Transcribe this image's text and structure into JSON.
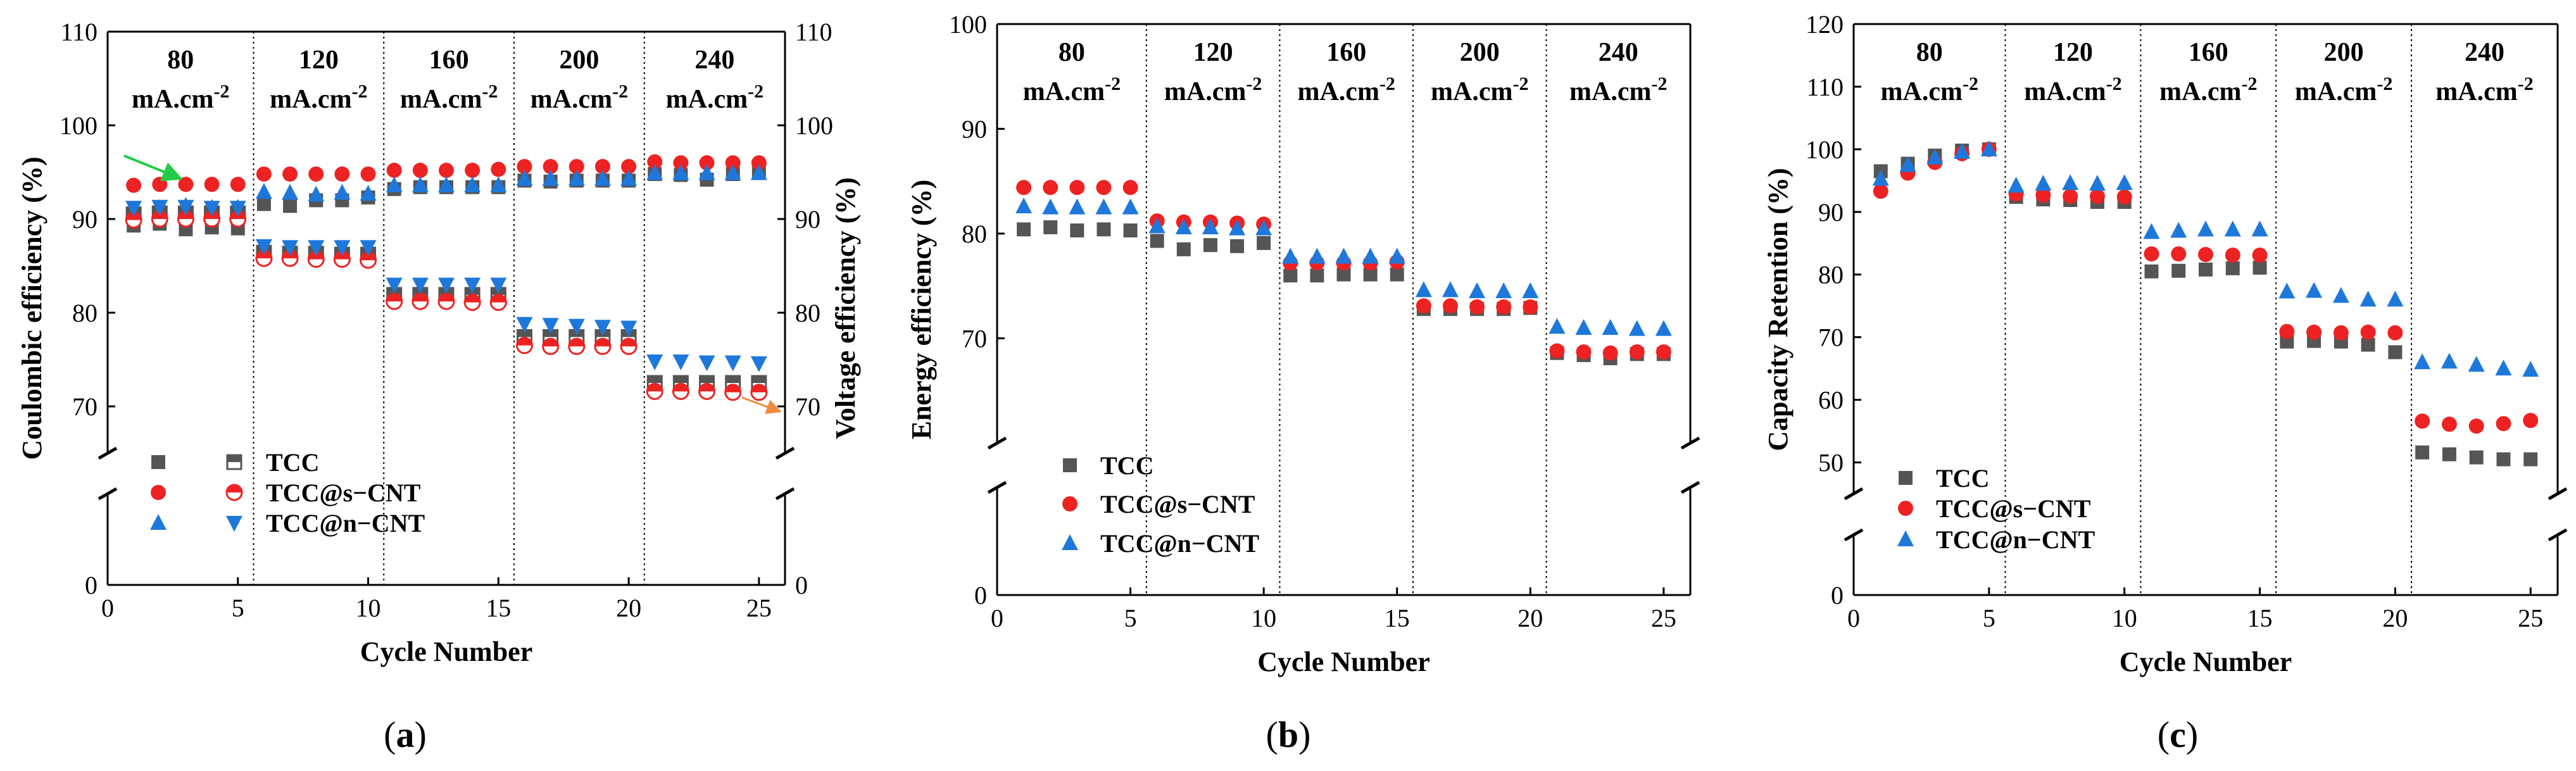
{
  "figure": {
    "panels": [
      {
        "id": "a",
        "label_open": "(",
        "label_letter": "a",
        "label_close": ")",
        "xlabel": "Cycle Number",
        "ylabel": "Coulombic efficiency (%)",
        "ylabel_right": "Voltage efficiency (%)",
        "xticks": [
          0,
          5,
          10,
          15,
          20,
          25
        ],
        "yticks": [
          0,
          70,
          80,
          90,
          100,
          110
        ],
        "yticks_right": [
          0,
          70,
          80,
          90,
          100,
          110
        ],
        "legend": [
          "TCC",
          "TCC@s−CNT",
          "TCC@n−CNT"
        ]
      },
      {
        "id": "b",
        "label_open": "(",
        "label_letter": "b",
        "label_close": ")",
        "xlabel": "Cycle Number",
        "ylabel": "Energy efficiency (%)",
        "xticks": [
          0,
          5,
          10,
          15,
          20,
          25
        ],
        "yticks": [
          0,
          70,
          80,
          90,
          100
        ],
        "legend": [
          "TCC",
          "TCC@s−CNT",
          "TCC@n−CNT"
        ]
      },
      {
        "id": "c",
        "label_open": "(",
        "label_letter": "c",
        "label_close": ")",
        "xlabel": "Cycle Number",
        "ylabel": "Capacity Retention (%)",
        "xticks": [
          0,
          5,
          10,
          15,
          20,
          25
        ],
        "yticks": [
          0,
          50,
          60,
          70,
          80,
          90,
          100,
          110,
          120
        ],
        "legend": [
          "TCC",
          "TCC@s−CNT",
          "TCC@n−CNT"
        ]
      }
    ],
    "rate_labels": [
      "80",
      "120",
      "160",
      "200",
      "240"
    ],
    "rate_unit": "mA.cm",
    "rate_unit_sup": "-2"
  },
  "chart_data": [
    {
      "type": "scatter",
      "title": "(a)",
      "xlabel": "Cycle Number",
      "ylabel": "Coulombic efficiency (%)",
      "ylabel_right": "Voltage efficiency (%)",
      "xlim": [
        0,
        26
      ],
      "ylim_display": [
        0,
        110
      ],
      "axis_break": [
        0,
        65
      ],
      "segment_labels": [
        "80 mA.cm-2",
        "120 mA.cm-2",
        "160 mA.cm-2",
        "200 mA.cm-2",
        "240 mA.cm-2"
      ],
      "segment_boundaries": [
        5.6,
        10.6,
        15.6,
        20.6
      ],
      "x": [
        1,
        2,
        3,
        4,
        5,
        6,
        7,
        8,
        9,
        10,
        11,
        12,
        13,
        14,
        15,
        16,
        17,
        18,
        19,
        20,
        21,
        22,
        23,
        24,
        25
      ],
      "series": [
        {
          "name": "TCC",
          "metric": "Coulombic efficiency",
          "marker": "square",
          "color": "#555555",
          "values": [
            89.3,
            89.5,
            88.9,
            89.1,
            89.0,
            91.6,
            91.4,
            92.0,
            92.0,
            92.3,
            93.2,
            93.4,
            93.4,
            93.4,
            93.4,
            94.1,
            94.0,
            94.1,
            94.1,
            94.1,
            94.8,
            94.7,
            94.2,
            94.8,
            94.9
          ]
        },
        {
          "name": "TCC@s−CNT",
          "metric": "Coulombic efficiency",
          "marker": "circle",
          "color": "#ee2222",
          "values": [
            93.6,
            93.7,
            93.7,
            93.7,
            93.7,
            94.8,
            94.8,
            94.8,
            94.8,
            94.8,
            95.2,
            95.2,
            95.2,
            95.2,
            95.3,
            95.6,
            95.6,
            95.6,
            95.6,
            95.6,
            96.1,
            96.0,
            96.0,
            96.0,
            96.0
          ]
        },
        {
          "name": "TCC@n−CNT",
          "metric": "Coulombic efficiency",
          "marker": "triangle-up",
          "color": "#1e78dc",
          "values": [
            90.9,
            91.2,
            91.4,
            91.2,
            91.2,
            92.9,
            92.8,
            92.6,
            92.8,
            92.7,
            93.6,
            93.6,
            93.6,
            93.6,
            93.6,
            94.3,
            94.3,
            94.3,
            94.3,
            94.3,
            94.9,
            94.9,
            94.9,
            94.9,
            94.9
          ]
        },
        {
          "name": "TCC",
          "metric": "Voltage efficiency",
          "marker": "square-half",
          "color": "#555555",
          "values": [
            90.5,
            90.6,
            90.6,
            90.6,
            90.6,
            86.4,
            86.3,
            86.3,
            86.2,
            86.2,
            81.9,
            81.9,
            81.9,
            81.9,
            81.9,
            77.4,
            77.4,
            77.4,
            77.4,
            77.4,
            72.5,
            72.5,
            72.5,
            72.5,
            72.5
          ]
        },
        {
          "name": "TCC@s−CNT",
          "metric": "Voltage efficiency",
          "marker": "circle-half",
          "color": "#ee2222",
          "values": [
            89.9,
            90.0,
            90.0,
            90.0,
            90.0,
            85.8,
            85.8,
            85.7,
            85.7,
            85.6,
            81.2,
            81.2,
            81.2,
            81.1,
            81.1,
            76.5,
            76.4,
            76.4,
            76.4,
            76.4,
            71.6,
            71.6,
            71.6,
            71.5,
            71.5
          ]
        },
        {
          "name": "TCC@n−CNT",
          "metric": "Voltage efficiency",
          "marker": "triangle-down",
          "color": "#1e78dc",
          "values": [
            91.2,
            91.3,
            91.3,
            91.2,
            91.2,
            87.1,
            87.0,
            87.0,
            87.0,
            87.0,
            83.0,
            83.0,
            83.0,
            83.0,
            83.0,
            78.8,
            78.7,
            78.6,
            78.5,
            78.4,
            74.8,
            74.8,
            74.7,
            74.7,
            74.6
          ]
        }
      ]
    },
    {
      "type": "scatter",
      "title": "(b)",
      "xlabel": "Cycle Number",
      "ylabel": "Energy efficiency (%)",
      "xlim": [
        0,
        26
      ],
      "ylim_display": [
        0,
        100
      ],
      "axis_break": [
        0,
        60
      ],
      "segment_labels": [
        "80 mA.cm-2",
        "120 mA.cm-2",
        "160 mA.cm-2",
        "200 mA.cm-2",
        "240 mA.cm-2"
      ],
      "segment_boundaries": [
        5.6,
        10.6,
        15.6,
        20.6
      ],
      "x": [
        1,
        2,
        3,
        4,
        5,
        6,
        7,
        8,
        9,
        10,
        11,
        12,
        13,
        14,
        15,
        16,
        17,
        18,
        19,
        20,
        21,
        22,
        23,
        24,
        25
      ],
      "series": [
        {
          "name": "TCC",
          "marker": "square",
          "color": "#555555",
          "values": [
            80.4,
            80.6,
            80.3,
            80.4,
            80.3,
            79.3,
            78.5,
            78.9,
            78.8,
            79.1,
            76.0,
            76.0,
            76.1,
            76.1,
            76.1,
            72.8,
            72.8,
            72.8,
            72.8,
            72.9,
            68.6,
            68.4,
            68.1,
            68.5,
            68.5
          ]
        },
        {
          "name": "TCC@s−CNT",
          "marker": "circle",
          "color": "#ee2222",
          "values": [
            84.4,
            84.4,
            84.4,
            84.4,
            84.4,
            81.2,
            81.1,
            81.1,
            81.0,
            80.9,
            77.2,
            77.2,
            77.2,
            77.2,
            77.3,
            73.1,
            73.1,
            73.0,
            73.0,
            73.0,
            68.8,
            68.7,
            68.6,
            68.7,
            68.7
          ]
        },
        {
          "name": "TCC@n−CNT",
          "marker": "triangle-up",
          "color": "#1e78dc",
          "values": [
            82.6,
            82.5,
            82.5,
            82.5,
            82.5,
            80.7,
            80.6,
            80.6,
            80.5,
            80.5,
            77.8,
            77.8,
            77.8,
            77.8,
            77.8,
            74.6,
            74.6,
            74.5,
            74.5,
            74.5,
            71.1,
            71.0,
            71.0,
            70.9,
            70.9
          ]
        }
      ]
    },
    {
      "type": "scatter",
      "title": "(c)",
      "xlabel": "Cycle Number",
      "ylabel": "Capacity Retention (%)",
      "xlim": [
        0,
        26
      ],
      "ylim_display": [
        0,
        120
      ],
      "axis_break": [
        0,
        45
      ],
      "segment_labels": [
        "80 mA.cm-2",
        "120 mA.cm-2",
        "160 mA.cm-2",
        "200 mA.cm-2",
        "240 mA.cm-2"
      ],
      "segment_boundaries": [
        5.6,
        10.6,
        15.6,
        20.6
      ],
      "x": [
        1,
        2,
        3,
        4,
        5,
        6,
        7,
        8,
        9,
        10,
        11,
        12,
        13,
        14,
        15,
        16,
        17,
        18,
        19,
        20,
        21,
        22,
        23,
        24,
        25
      ],
      "series": [
        {
          "name": "TCC",
          "marker": "square",
          "color": "#555555",
          "values": [
            96.5,
            97.7,
            99.0,
            99.8,
            100.0,
            92.4,
            92.0,
            91.9,
            91.6,
            91.6,
            80.5,
            80.6,
            80.8,
            81.0,
            81.1,
            69.3,
            69.4,
            69.3,
            68.8,
            67.6,
            51.6,
            51.3,
            50.8,
            50.5,
            50.5
          ]
        },
        {
          "name": "TCC@s−CNT",
          "marker": "circle",
          "color": "#ee2222",
          "values": [
            93.3,
            96.2,
            97.9,
            99.3,
            100.0,
            92.9,
            92.7,
            92.5,
            92.5,
            92.4,
            83.3,
            83.3,
            83.2,
            83.1,
            83.1,
            70.9,
            70.8,
            70.7,
            70.8,
            70.7,
            56.6,
            56.1,
            55.8,
            56.2,
            56.7
          ]
        },
        {
          "name": "TCC@n−CNT",
          "marker": "triangle-up",
          "color": "#1e78dc",
          "values": [
            95.3,
            97.5,
            98.7,
            99.6,
            100.0,
            94.2,
            94.5,
            94.6,
            94.5,
            94.6,
            86.8,
            87.0,
            87.2,
            87.2,
            87.2,
            77.3,
            77.4,
            76.6,
            76.0,
            76.0,
            66.0,
            66.1,
            65.6,
            65.0,
            64.8
          ]
        }
      ]
    }
  ]
}
